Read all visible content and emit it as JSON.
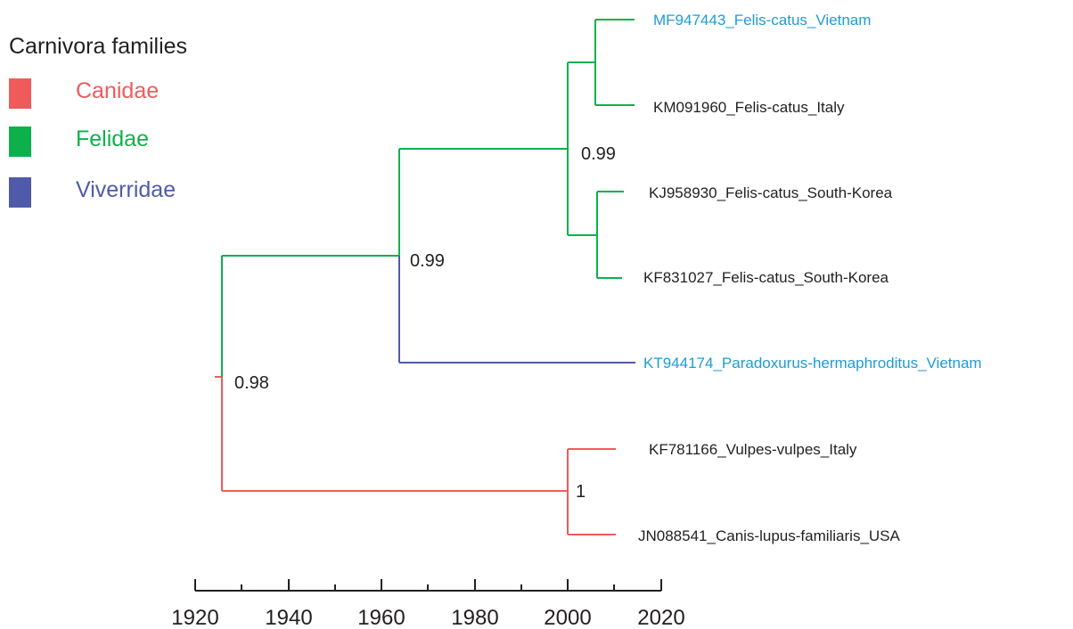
{
  "legend": {
    "title": "Carnivora families",
    "items": [
      {
        "label": "Canidae",
        "color": "#f05a5b"
      },
      {
        "label": "Felidae",
        "color": "#0db14b"
      },
      {
        "label": "Viverridae",
        "color": "#4f5ba8"
      }
    ]
  },
  "tree": {
    "leaves": [
      {
        "label": "MF947443_Felis-catus_Vietnam",
        "color": "#1f9bd7"
      },
      {
        "label": "KM091960_Felis-catus_Italy",
        "color": "#231f20"
      },
      {
        "label": "KJ958930_Felis-catus_South-Korea",
        "color": "#231f20"
      },
      {
        "label": "KF831027_Felis-catus_South-Korea",
        "color": "#231f20"
      },
      {
        "label": "KT944174_Paradoxurus-hermaphroditus_Vietnam",
        "color": "#1f9bd7"
      },
      {
        "label": "KF781166_Vulpes-vulpes_Italy",
        "color": "#231f20"
      },
      {
        "label": "JN088541_Canis-lupus-familiaris_USA",
        "color": "#231f20"
      }
    ],
    "support_values": [
      "0.99",
      "0.99",
      "0.98",
      "1"
    ]
  },
  "axis": {
    "ticks": [
      "1920",
      "1940",
      "1960",
      "1980",
      "2000",
      "2020"
    ]
  }
}
